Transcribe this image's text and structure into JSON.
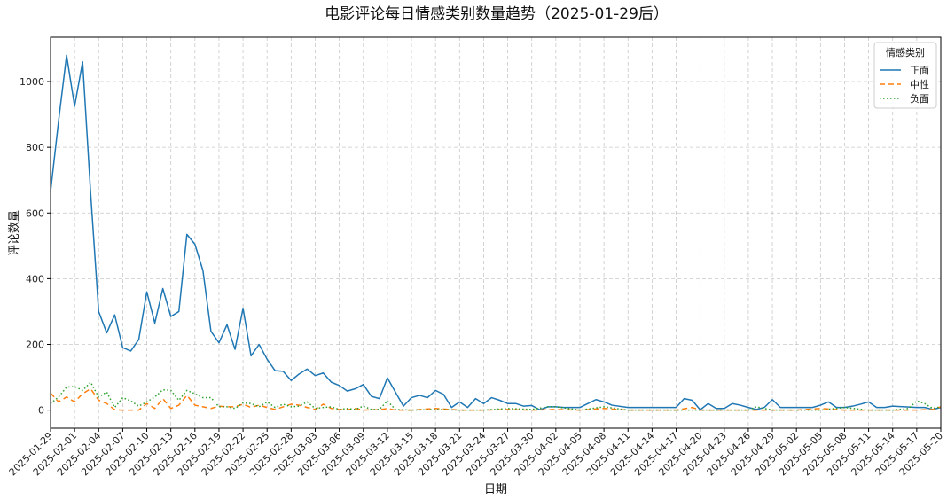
{
  "chart_data": {
    "type": "line",
    "title": "电影评论每日情感类别数量趋势（2025-01-29后）",
    "xlabel": "日期",
    "ylabel": "评论数量",
    "ylim": [
      -55,
      1135
    ],
    "yticks": [
      0,
      200,
      400,
      600,
      800,
      1000
    ],
    "xlim": [
      "2025-01-29",
      "2025-05-20"
    ],
    "xticks": [
      "2025-01-29",
      "2025-02-01",
      "2025-02-04",
      "2025-02-07",
      "2025-02-10",
      "2025-02-13",
      "2025-02-16",
      "2025-02-19",
      "2025-02-22",
      "2025-02-25",
      "2025-02-28",
      "2025-03-03",
      "2025-03-06",
      "2025-03-09",
      "2025-03-12",
      "2025-03-15",
      "2025-03-18",
      "2025-03-21",
      "2025-03-24",
      "2025-03-27",
      "2025-03-30",
      "2025-04-02",
      "2025-04-05",
      "2025-04-08",
      "2025-04-11",
      "2025-04-14",
      "2025-04-17",
      "2025-04-20",
      "2025-04-23",
      "2025-04-26",
      "2025-04-29",
      "2025-05-02",
      "2025-05-05",
      "2025-05-08",
      "2025-05-11",
      "2025-05-14",
      "2025-05-17",
      "2025-05-20"
    ],
    "grid": true,
    "legend": {
      "title": "情感类别",
      "placement": "top-right"
    },
    "series": [
      {
        "name": "正面",
        "color": "#1f77b4",
        "style": "solid",
        "points": [
          [
            "2025-01-29",
            665
          ],
          [
            "2025-01-30",
            880
          ],
          [
            "2025-01-31",
            1080
          ],
          [
            "2025-02-01",
            925
          ],
          [
            "2025-02-02",
            1060
          ],
          [
            "2025-02-03",
            660
          ],
          [
            "2025-02-04",
            300
          ],
          [
            "2025-02-05",
            235
          ],
          [
            "2025-02-06",
            290
          ],
          [
            "2025-02-07",
            190
          ],
          [
            "2025-02-08",
            180
          ],
          [
            "2025-02-09",
            215
          ],
          [
            "2025-02-10",
            360
          ],
          [
            "2025-02-11",
            265
          ],
          [
            "2025-02-12",
            370
          ],
          [
            "2025-02-13",
            285
          ],
          [
            "2025-02-14",
            300
          ],
          [
            "2025-02-15",
            535
          ],
          [
            "2025-02-16",
            505
          ],
          [
            "2025-02-17",
            425
          ],
          [
            "2025-02-18",
            240
          ],
          [
            "2025-02-19",
            205
          ],
          [
            "2025-02-20",
            260
          ],
          [
            "2025-02-21",
            185
          ],
          [
            "2025-02-22",
            310
          ],
          [
            "2025-02-23",
            165
          ],
          [
            "2025-02-24",
            200
          ],
          [
            "2025-02-25",
            155
          ],
          [
            "2025-02-26",
            120
          ],
          [
            "2025-02-27",
            118
          ],
          [
            "2025-02-28",
            90
          ],
          [
            "2025-03-01",
            110
          ],
          [
            "2025-03-02",
            125
          ],
          [
            "2025-03-03",
            105
          ],
          [
            "2025-03-04",
            113
          ],
          [
            "2025-03-05",
            85
          ],
          [
            "2025-03-06",
            75
          ],
          [
            "2025-03-07",
            58
          ],
          [
            "2025-03-08",
            65
          ],
          [
            "2025-03-09",
            78
          ],
          [
            "2025-03-10",
            42
          ],
          [
            "2025-03-11",
            35
          ],
          [
            "2025-03-12",
            98
          ],
          [
            "2025-03-13",
            55
          ],
          [
            "2025-03-14",
            12
          ],
          [
            "2025-03-15",
            38
          ],
          [
            "2025-03-16",
            45
          ],
          [
            "2025-03-17",
            38
          ],
          [
            "2025-03-18",
            60
          ],
          [
            "2025-03-19",
            48
          ],
          [
            "2025-03-20",
            8
          ],
          [
            "2025-03-21",
            25
          ],
          [
            "2025-03-22",
            8
          ],
          [
            "2025-03-23",
            35
          ],
          [
            "2025-03-24",
            20
          ],
          [
            "2025-03-25",
            38
          ],
          [
            "2025-03-26",
            30
          ],
          [
            "2025-03-27",
            20
          ],
          [
            "2025-03-28",
            20
          ],
          [
            "2025-03-29",
            12
          ],
          [
            "2025-03-30",
            14
          ],
          [
            "2025-03-31",
            1
          ],
          [
            "2025-04-01",
            10
          ],
          [
            "2025-04-02",
            10
          ],
          [
            "2025-04-03",
            8
          ],
          [
            "2025-04-04",
            8
          ],
          [
            "2025-04-05",
            8
          ],
          [
            "2025-04-06",
            20
          ],
          [
            "2025-04-07",
            32
          ],
          [
            "2025-04-08",
            25
          ],
          [
            "2025-04-09",
            15
          ],
          [
            "2025-04-11",
            8
          ],
          [
            "2025-04-13",
            8
          ],
          [
            "2025-04-15",
            8
          ],
          [
            "2025-04-17",
            8
          ],
          [
            "2025-04-18",
            35
          ],
          [
            "2025-04-19",
            30
          ],
          [
            "2025-04-20",
            1
          ],
          [
            "2025-04-21",
            20
          ],
          [
            "2025-04-22",
            5
          ],
          [
            "2025-04-23",
            5
          ],
          [
            "2025-04-24",
            20
          ],
          [
            "2025-04-25",
            15
          ],
          [
            "2025-04-26",
            8
          ],
          [
            "2025-04-27",
            2
          ],
          [
            "2025-04-28",
            8
          ],
          [
            "2025-04-29",
            32
          ],
          [
            "2025-04-30",
            8
          ],
          [
            "2025-05-01",
            8
          ],
          [
            "2025-05-02",
            8
          ],
          [
            "2025-05-03",
            8
          ],
          [
            "2025-05-04",
            8
          ],
          [
            "2025-05-05",
            15
          ],
          [
            "2025-05-06",
            25
          ],
          [
            "2025-05-07",
            8
          ],
          [
            "2025-05-08",
            8
          ],
          [
            "2025-05-09",
            12
          ],
          [
            "2025-05-10",
            18
          ],
          [
            "2025-05-11",
            25
          ],
          [
            "2025-05-12",
            8
          ],
          [
            "2025-05-13",
            8
          ],
          [
            "2025-05-14",
            12
          ],
          [
            "2025-05-17",
            8
          ],
          [
            "2025-05-18",
            8
          ],
          [
            "2025-05-19",
            2
          ],
          [
            "2025-05-20",
            8
          ]
        ]
      },
      {
        "name": "中性",
        "color": "#ff7f0e",
        "style": "dashed",
        "points": [
          [
            "2025-01-29",
            52
          ],
          [
            "2025-01-30",
            25
          ],
          [
            "2025-01-31",
            40
          ],
          [
            "2025-02-01",
            25
          ],
          [
            "2025-02-02",
            50
          ],
          [
            "2025-02-03",
            65
          ],
          [
            "2025-02-04",
            30
          ],
          [
            "2025-02-05",
            20
          ],
          [
            "2025-02-06",
            1
          ],
          [
            "2025-02-07",
            0
          ],
          [
            "2025-02-08",
            0
          ],
          [
            "2025-02-09",
            0
          ],
          [
            "2025-02-10",
            20
          ],
          [
            "2025-02-11",
            5
          ],
          [
            "2025-02-12",
            35
          ],
          [
            "2025-02-13",
            5
          ],
          [
            "2025-02-14",
            15
          ],
          [
            "2025-02-15",
            45
          ],
          [
            "2025-02-16",
            15
          ],
          [
            "2025-02-17",
            10
          ],
          [
            "2025-02-18",
            5
          ],
          [
            "2025-02-19",
            12
          ],
          [
            "2025-02-20",
            10
          ],
          [
            "2025-02-21",
            10
          ],
          [
            "2025-02-22",
            18
          ],
          [
            "2025-02-23",
            8
          ],
          [
            "2025-02-24",
            15
          ],
          [
            "2025-02-25",
            8
          ],
          [
            "2025-02-26",
            2
          ],
          [
            "2025-02-27",
            10
          ],
          [
            "2025-02-28",
            18
          ],
          [
            "2025-03-01",
            15
          ],
          [
            "2025-03-02",
            8
          ],
          [
            "2025-03-03",
            2
          ],
          [
            "2025-03-04",
            18
          ],
          [
            "2025-03-05",
            5
          ],
          [
            "2025-03-06",
            2
          ],
          [
            "2025-03-07",
            1
          ],
          [
            "2025-03-08",
            5
          ],
          [
            "2025-03-09",
            0
          ],
          [
            "2025-03-10",
            1
          ],
          [
            "2025-03-11",
            1
          ],
          [
            "2025-03-12",
            5
          ],
          [
            "2025-03-13",
            0
          ],
          [
            "2025-03-15",
            0
          ],
          [
            "2025-03-18",
            5
          ],
          [
            "2025-03-21",
            0
          ],
          [
            "2025-03-24",
            0
          ],
          [
            "2025-03-27",
            2
          ],
          [
            "2025-03-30",
            0
          ],
          [
            "2025-04-02",
            2
          ],
          [
            "2025-04-05",
            0
          ],
          [
            "2025-04-08",
            5
          ],
          [
            "2025-04-11",
            0
          ],
          [
            "2025-04-14",
            0
          ],
          [
            "2025-04-17",
            0
          ],
          [
            "2025-04-19",
            8
          ],
          [
            "2025-04-20",
            0
          ],
          [
            "2025-04-23",
            0
          ],
          [
            "2025-04-26",
            0
          ],
          [
            "2025-04-29",
            0
          ],
          [
            "2025-05-02",
            0
          ],
          [
            "2025-05-05",
            5
          ],
          [
            "2025-05-08",
            0
          ],
          [
            "2025-05-11",
            0
          ],
          [
            "2025-05-14",
            0
          ],
          [
            "2025-05-17",
            0
          ],
          [
            "2025-05-19",
            2
          ],
          [
            "2025-05-20",
            10
          ]
        ]
      },
      {
        "name": "负面",
        "color": "#2ca02c",
        "style": "dotted",
        "points": [
          [
            "2025-01-29",
            20
          ],
          [
            "2025-01-30",
            40
          ],
          [
            "2025-01-31",
            70
          ],
          [
            "2025-02-01",
            72
          ],
          [
            "2025-02-02",
            60
          ],
          [
            "2025-02-03",
            85
          ],
          [
            "2025-02-04",
            40
          ],
          [
            "2025-02-05",
            55
          ],
          [
            "2025-02-06",
            8
          ],
          [
            "2025-02-07",
            38
          ],
          [
            "2025-02-08",
            28
          ],
          [
            "2025-02-09",
            12
          ],
          [
            "2025-02-10",
            25
          ],
          [
            "2025-02-11",
            40
          ],
          [
            "2025-02-12",
            62
          ],
          [
            "2025-02-13",
            60
          ],
          [
            "2025-02-14",
            30
          ],
          [
            "2025-02-15",
            60
          ],
          [
            "2025-02-16",
            50
          ],
          [
            "2025-02-17",
            38
          ],
          [
            "2025-02-18",
            38
          ],
          [
            "2025-02-19",
            10
          ],
          [
            "2025-02-20",
            10
          ],
          [
            "2025-02-21",
            5
          ],
          [
            "2025-02-22",
            22
          ],
          [
            "2025-02-23",
            20
          ],
          [
            "2025-02-24",
            10
          ],
          [
            "2025-02-25",
            25
          ],
          [
            "2025-02-26",
            8
          ],
          [
            "2025-02-27",
            18
          ],
          [
            "2025-02-28",
            10
          ],
          [
            "2025-03-01",
            12
          ],
          [
            "2025-03-02",
            25
          ],
          [
            "2025-03-03",
            5
          ],
          [
            "2025-03-04",
            8
          ],
          [
            "2025-03-05",
            10
          ],
          [
            "2025-03-06",
            2
          ],
          [
            "2025-03-07",
            5
          ],
          [
            "2025-03-08",
            2
          ],
          [
            "2025-03-09",
            12
          ],
          [
            "2025-03-10",
            2
          ],
          [
            "2025-03-11",
            2
          ],
          [
            "2025-03-12",
            28
          ],
          [
            "2025-03-13",
            2
          ],
          [
            "2025-03-15",
            0
          ],
          [
            "2025-03-18",
            2
          ],
          [
            "2025-03-21",
            0
          ],
          [
            "2025-03-24",
            0
          ],
          [
            "2025-03-27",
            5
          ],
          [
            "2025-03-30",
            2
          ],
          [
            "2025-04-01",
            10
          ],
          [
            "2025-04-02",
            10
          ],
          [
            "2025-04-05",
            0
          ],
          [
            "2025-04-08",
            10
          ],
          [
            "2025-04-11",
            0
          ],
          [
            "2025-04-14",
            0
          ],
          [
            "2025-04-17",
            0
          ],
          [
            "2025-04-20",
            0
          ],
          [
            "2025-04-23",
            0
          ],
          [
            "2025-04-26",
            0
          ],
          [
            "2025-04-27",
            10
          ],
          [
            "2025-04-28",
            5
          ],
          [
            "2025-04-29",
            0
          ],
          [
            "2025-05-02",
            0
          ],
          [
            "2025-05-05",
            0
          ],
          [
            "2025-05-08",
            8
          ],
          [
            "2025-05-11",
            0
          ],
          [
            "2025-05-14",
            0
          ],
          [
            "2025-05-16",
            5
          ],
          [
            "2025-05-17",
            28
          ],
          [
            "2025-05-18",
            20
          ],
          [
            "2025-05-19",
            5
          ],
          [
            "2025-05-20",
            10
          ]
        ]
      }
    ]
  }
}
